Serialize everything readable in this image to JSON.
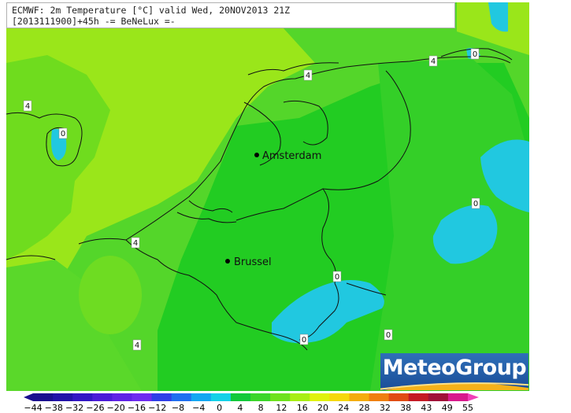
{
  "header": {
    "line1": "ECMWF: 2m Temperature [°C] valid Wed, 20NOV2013 21Z",
    "line2": "[2013111900]+45h -= BeNeLux =-"
  },
  "logo": {
    "text": "MeteoGroup"
  },
  "cities": [
    {
      "name": "Amsterdam"
    },
    {
      "name": "Brussel"
    }
  ],
  "contour_labels": [
    "4",
    "4",
    "4",
    "4",
    "4",
    "0",
    "0",
    "0",
    "0",
    "0",
    "0"
  ],
  "legend": {
    "ticks": [
      "-44",
      "-38",
      "-32",
      "-26",
      "-20",
      "-16",
      "-12",
      "-8",
      "-4",
      "0",
      "4",
      "8",
      "12",
      "16",
      "20",
      "24",
      "28",
      "32",
      "38",
      "43",
      "49",
      "55"
    ],
    "colors": [
      "#1a0f8f",
      "#2212a8",
      "#3216c4",
      "#4a1bd8",
      "#5f22e6",
      "#6e2cf0",
      "#2f3fe8",
      "#1f6ff0",
      "#13a7f2",
      "#14d1e8",
      "#12c93a",
      "#3bd62a",
      "#6ee21e",
      "#a8ee14",
      "#e0f20e",
      "#f5d80c",
      "#f4ac0e",
      "#ef7f10",
      "#e04c14",
      "#c41a24",
      "#a01238",
      "#d81a8c",
      "#f040b8"
    ]
  },
  "colors": {
    "light_green": "#9ae61a",
    "green": "#54d62a",
    "bright_green": "#22cc22",
    "mid_green": "#3ccb2c",
    "cyan": "#21c8e0",
    "logo_blue": "#1f5aa6"
  }
}
